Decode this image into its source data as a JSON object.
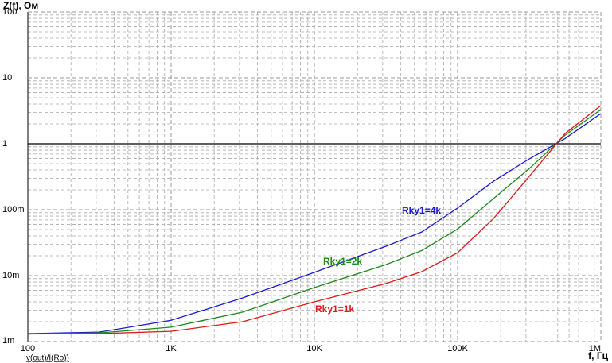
{
  "chart_data": {
    "type": "line",
    "title": "Z(f), Ом",
    "x_label": "f, Гц",
    "expression": "v(out)/I(Ro))",
    "log_x": true,
    "log_y": true,
    "grid": true,
    "hline": 1,
    "xlim": [
      100,
      1000000
    ],
    "ylim": [
      0.001,
      100
    ],
    "xticks": [
      100,
      {
        "value": 1000,
        "label": "1K"
      },
      {
        "value": 10000,
        "label": "10K"
      },
      {
        "value": 100000,
        "label": "100K"
      },
      {
        "value": 1000000,
        "label": "1M"
      }
    ],
    "yticks": [
      {
        "value": 0.001,
        "label": "1m"
      },
      {
        "value": 0.01,
        "label": "10m"
      },
      {
        "value": 0.1,
        "label": "100m"
      },
      1,
      10,
      100
    ],
    "x": [
      100,
      316,
      1000,
      3162,
      10000,
      31623,
      56234,
      100000,
      177828,
      316228,
      562341,
      1000000
    ],
    "series": [
      {
        "name": "Rky1=4k",
        "color": "#1a1ad0",
        "values": [
          0.00132,
          0.00139,
          0.0021,
          0.0046,
          0.0112,
          0.0279,
          0.046,
          0.106,
          0.27,
          0.59,
          1.2,
          2.87
        ]
      },
      {
        "name": "Rky1=2k",
        "color": "#1a8a1a",
        "values": [
          0.0013,
          0.00135,
          0.00165,
          0.0028,
          0.0066,
          0.0147,
          0.024,
          0.051,
          0.147,
          0.42,
          1.35,
          3.3
        ]
      },
      {
        "name": "Rky1=1k",
        "color": "#e01a1a",
        "values": [
          0.0013,
          0.00132,
          0.00143,
          0.002,
          0.004,
          0.0076,
          0.0115,
          0.0223,
          0.073,
          0.32,
          1.43,
          3.8
        ]
      }
    ]
  }
}
